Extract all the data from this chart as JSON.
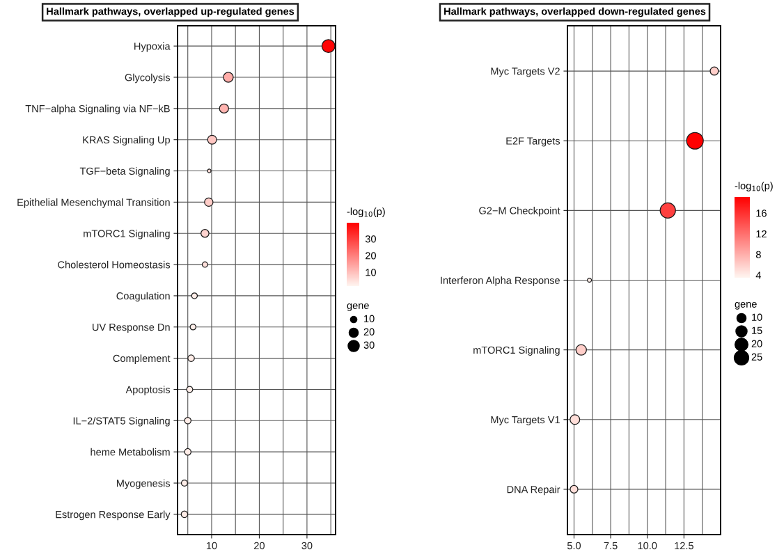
{
  "chart_data": [
    {
      "type": "bubble",
      "title": "Hallmark pathways, overlapped up-regulated genes",
      "categories": [
        "Hypoxia",
        "Glycolysis",
        "TNF−alpha Signaling via NF−kB",
        "KRAS Signaling Up",
        "TGF−beta Signaling",
        "Epithelial Mesenchymal Transition",
        "mTORC1 Signaling",
        "Cholesterol Homeostasis",
        "Coagulation",
        "UV Response Dn",
        "Complement",
        "Apoptosis",
        "IL−2/STAT5 Signaling",
        "heme Metabolism",
        "Myogenesis",
        "Estrogen Response Early"
      ],
      "orientation": "horizontal",
      "values": [
        34.5,
        13.5,
        12.6,
        10.1,
        9.5,
        9.4,
        8.6,
        8.6,
        6.4,
        6.1,
        5.7,
        5.4,
        5.0,
        5.0,
        4.3,
        4.3
      ],
      "sizes": [
        40,
        23,
        20,
        19,
        3,
        17,
        15,
        7,
        8,
        8,
        10,
        9,
        10,
        10,
        9,
        10
      ],
      "cvalues": [
        39,
        13,
        12,
        9,
        6,
        8,
        7,
        5,
        3,
        3,
        3,
        3,
        3,
        3,
        3,
        3
      ],
      "clim": [
        1.7,
        39.6
      ],
      "cticks": [
        10,
        20,
        30
      ],
      "clabel": "-log$_{10}$(p)",
      "legend_title": "gene",
      "size_legend": [
        10,
        20,
        30
      ],
      "xlim": [
        2.85,
        36
      ],
      "xticks": [
        10,
        20,
        30
      ],
      "grid": true
    },
    {
      "type": "bubble",
      "title": "Hallmark pathways, overlapped down-regulated genes",
      "categories": [
        "Myc Targets V2",
        "E2F Targets",
        "G2−M Checkpoint",
        "Interferon Alpha Response",
        "mTORC1 Signaling",
        "Myc Targets V1",
        "DNA Repair"
      ],
      "orientation": "horizontal",
      "values": [
        14.57,
        13.25,
        11.4,
        6.05,
        5.49,
        5.06,
        5.0
      ],
      "sizes": [
        8,
        33,
        28,
        2,
        13,
        11,
        7
      ],
      "cvalues": [
        6,
        19,
        15,
        4,
        6,
        5,
        5
      ],
      "clim": [
        3.5,
        19.1
      ],
      "cticks": [
        4,
        8,
        12,
        16
      ],
      "clabel": "-log$_{10}$(p)",
      "legend_title": "gene",
      "size_legend": [
        10,
        15,
        20,
        25
      ],
      "xlim": [
        4.55,
        15.0
      ],
      "xticks": [
        {
          "value": 5,
          "label": "5.0"
        },
        {
          "value": 7.5,
          "label": "7.5"
        },
        {
          "value": 10,
          "label": "10.0"
        },
        {
          "value": 12.5,
          "label": "12.5"
        }
      ],
      "grid": true
    }
  ]
}
